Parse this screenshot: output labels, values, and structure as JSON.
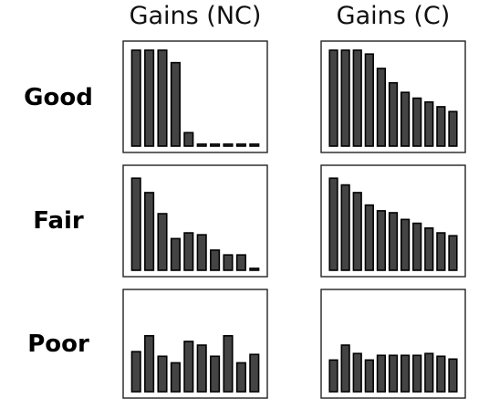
{
  "column_titles": [
    "Gains (NC)",
    "Gains (C)"
  ],
  "row_labels": [
    "Good",
    "Fair",
    "Poor"
  ],
  "chart_data": [
    {
      "type": "bar",
      "row": "Good",
      "column": "Gains (NC)",
      "ylim": [
        0,
        1
      ],
      "values": [
        1.0,
        1.0,
        1.0,
        0.87,
        0.14,
        0.02,
        0.02,
        0.02,
        0.02,
        0.02
      ]
    },
    {
      "type": "bar",
      "row": "Good",
      "column": "Gains (C)",
      "ylim": [
        0,
        1
      ],
      "values": [
        1.0,
        1.0,
        1.0,
        0.96,
        0.81,
        0.66,
        0.56,
        0.5,
        0.46,
        0.41,
        0.36
      ]
    },
    {
      "type": "bar",
      "row": "Fair",
      "column": "Gains (NC)",
      "ylim": [
        0,
        1
      ],
      "values": [
        0.96,
        0.81,
        0.59,
        0.33,
        0.39,
        0.37,
        0.21,
        0.16,
        0.16,
        0.02
      ]
    },
    {
      "type": "bar",
      "row": "Fair",
      "column": "Gains (C)",
      "ylim": [
        0,
        1
      ],
      "values": [
        0.96,
        0.89,
        0.81,
        0.68,
        0.62,
        0.6,
        0.53,
        0.49,
        0.44,
        0.39,
        0.36
      ]
    },
    {
      "type": "bar",
      "row": "Poor",
      "column": "Gains (NC)",
      "ylim": [
        0,
        1
      ],
      "values": [
        0.43,
        0.6,
        0.38,
        0.31,
        0.54,
        0.5,
        0.38,
        0.6,
        0.31,
        0.4
      ]
    },
    {
      "type": "bar",
      "row": "Poor",
      "column": "Gains (C)",
      "ylim": [
        0,
        1
      ],
      "values": [
        0.34,
        0.5,
        0.41,
        0.34,
        0.39,
        0.39,
        0.39,
        0.39,
        0.41,
        0.38,
        0.35
      ]
    }
  ]
}
